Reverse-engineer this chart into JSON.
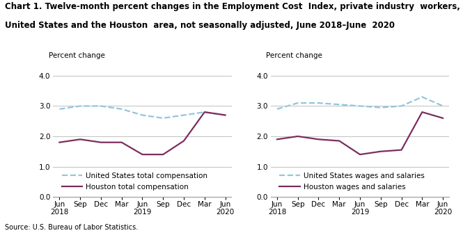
{
  "title_line1": "Chart 1. Twelve-month percent changes in the Employment Cost  Index, private industry  workers,",
  "title_line2": "United States and the Houston  area, not seasonally adjusted, June 2018–June  2020",
  "source": "Source: U.S. Bureau of Labor Statistics.",
  "x_labels": [
    "Jun\n2018",
    "Sep",
    "Dec",
    "Mar",
    "Jun\n2019",
    "Sep",
    "Dec",
    "Mar",
    "Jun\n2020"
  ],
  "ylim": [
    0.0,
    4.0
  ],
  "yticks": [
    0.0,
    1.0,
    2.0,
    3.0,
    4.0
  ],
  "ylabel": "Percent change",
  "left_chart": {
    "us_line": [
      2.9,
      3.0,
      3.0,
      2.9,
      2.7,
      2.6,
      2.7,
      2.8,
      2.7
    ],
    "houston_line": [
      1.8,
      1.9,
      1.8,
      1.8,
      1.4,
      1.4,
      1.85,
      2.8,
      2.7
    ],
    "us_label": "United States total compensation",
    "houston_label": "Houston total compensation"
  },
  "right_chart": {
    "us_line": [
      2.9,
      3.1,
      3.1,
      3.05,
      3.0,
      2.95,
      3.0,
      3.3,
      3.0
    ],
    "houston_line": [
      1.9,
      2.0,
      1.9,
      1.85,
      1.4,
      1.5,
      1.55,
      2.8,
      2.6
    ],
    "us_label": "United States wages and salaries",
    "houston_label": "Houston wages and salaries"
  },
  "us_color": "#92C5DE",
  "houston_color": "#7B2D5E",
  "us_linestyle": "--",
  "houston_linestyle": "-",
  "linewidth": 1.6,
  "title_fontsize": 8.5,
  "axis_label_fontsize": 7.5,
  "tick_fontsize": 7.5,
  "legend_fontsize": 7.5,
  "source_fontsize": 7.0
}
